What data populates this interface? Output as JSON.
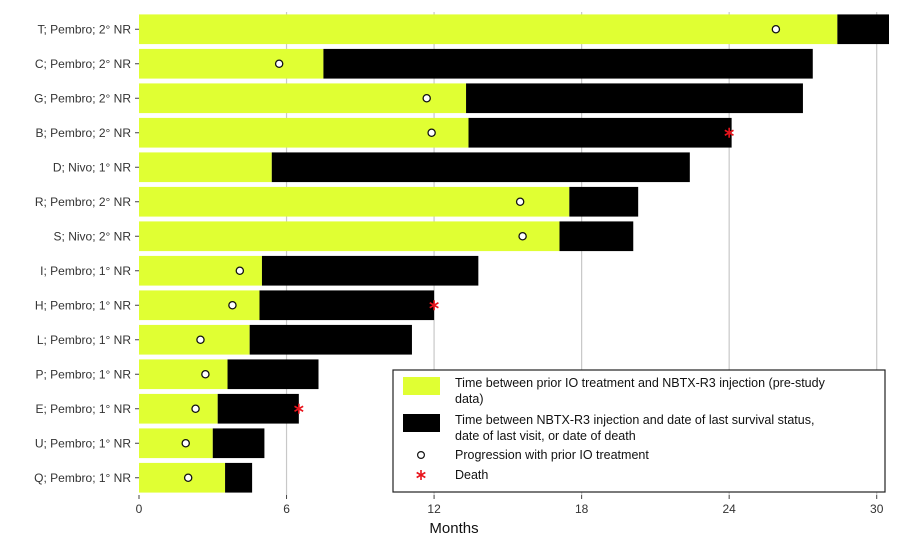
{
  "chart_data": {
    "type": "bar",
    "orientation": "horizontal",
    "stacked": true,
    "xlabel": "Months",
    "ylabel": "",
    "xlim": [
      0,
      30.5
    ],
    "xticks": [
      0,
      6,
      12,
      18,
      24,
      30
    ],
    "xtick_labels": [
      "0",
      "6",
      "12",
      "18",
      "24",
      "30"
    ],
    "grid": "vertical major",
    "colors": {
      "pre_study": "#e0ff33",
      "post_injection": "#000000",
      "progression_marker": "#ffffff",
      "death_marker": "#e8141c",
      "gridline": "#c8c8c8",
      "panel": "#ffffff"
    },
    "categories": [
      "T; Pembro; 2° NR",
      "C; Pembro; 2° NR",
      "G; Pembro; 2° NR",
      "B; Pembro; 2° NR",
      "D; Nivo; 1° NR",
      "R; Pembro; 2° NR",
      "S; Nivo; 2° NR",
      "I; Pembro; 1° NR",
      "H; Pembro; 1° NR",
      "L; Pembro; 1° NR",
      "P; Pembro; 1° NR",
      "E; Pembro; 1° NR",
      "U; Pembro; 1° NR",
      "Q; Pembro; 1° NR"
    ],
    "series": [
      {
        "name": "Time between prior IO treatment and NBTX-R3 injection (pre-study data)",
        "values": [
          28.4,
          7.5,
          13.3,
          13.4,
          5.4,
          17.5,
          17.1,
          5.0,
          4.9,
          4.5,
          3.6,
          3.2,
          3.0,
          3.5
        ]
      },
      {
        "name": "Time between NBTX-R3 injection and date of last survival status, date of last visit, or date of death",
        "values": [
          2.1,
          19.9,
          13.7,
          10.7,
          17.0,
          2.8,
          3.0,
          8.8,
          7.1,
          6.6,
          3.7,
          3.3,
          2.1,
          1.1
        ]
      }
    ],
    "progression_times": [
      25.9,
      5.7,
      11.7,
      11.9,
      null,
      15.5,
      15.6,
      4.1,
      3.8,
      2.5,
      2.7,
      2.3,
      1.9,
      2.0
    ],
    "death_times": [
      null,
      null,
      null,
      24.0,
      null,
      null,
      null,
      null,
      12.0,
      null,
      null,
      6.5,
      null,
      null
    ],
    "legend": {
      "position": "bottom-right",
      "entries": [
        {
          "key": "pre_study",
          "text_lines": [
            "Time between prior IO treatment and NBTX-R3 injection (pre-study",
            "data)"
          ]
        },
        {
          "key": "post_injection",
          "text_lines": [
            "Time between NBTX-R3 injection and date of last survival status,",
            "date of last visit, or date of death"
          ]
        },
        {
          "key": "progression",
          "text_lines": [
            "Progression with prior IO treatment"
          ]
        },
        {
          "key": "death",
          "text_lines": [
            "Death"
          ]
        }
      ]
    }
  }
}
